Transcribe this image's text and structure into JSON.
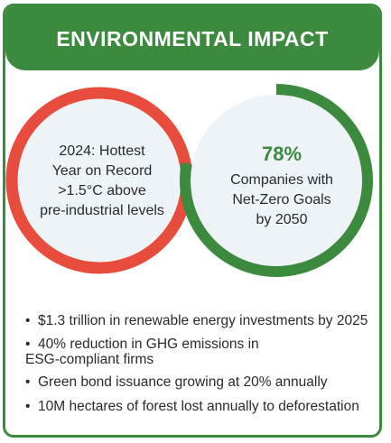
{
  "header": {
    "title": "ENVIRONMENTAL IMPACT"
  },
  "stats": {
    "left": {
      "lines": [
        "2024: Hottest",
        "Year on Record",
        ">1.5°C above",
        "pre-industrial levels"
      ],
      "ring_color": "#e84c3d"
    },
    "right": {
      "value": "78%",
      "lines": [
        "Companies with",
        "Net-Zero Goals",
        "by 2050"
      ],
      "progress_fraction": 0.78,
      "ring_color": "#3b8a3e"
    }
  },
  "facts": [
    {
      "bullet": "•",
      "lines": [
        "$1.3 trillion in renewable energy investments by 2025"
      ]
    },
    {
      "bullet": "•",
      "lines": [
        "40% reduction in GHG emissions in",
        "ESG-compliant firms"
      ]
    },
    {
      "bullet": "•",
      "lines": [
        "Green bond issuance growing at 20% annually"
      ]
    },
    {
      "bullet": "•",
      "lines": [
        "10M hectares of forest lost annually to deforestation"
      ]
    }
  ],
  "colors": {
    "accent_green": "#3b8a3e",
    "accent_red": "#e84c3d",
    "circle_fill": "#eef3f8"
  }
}
